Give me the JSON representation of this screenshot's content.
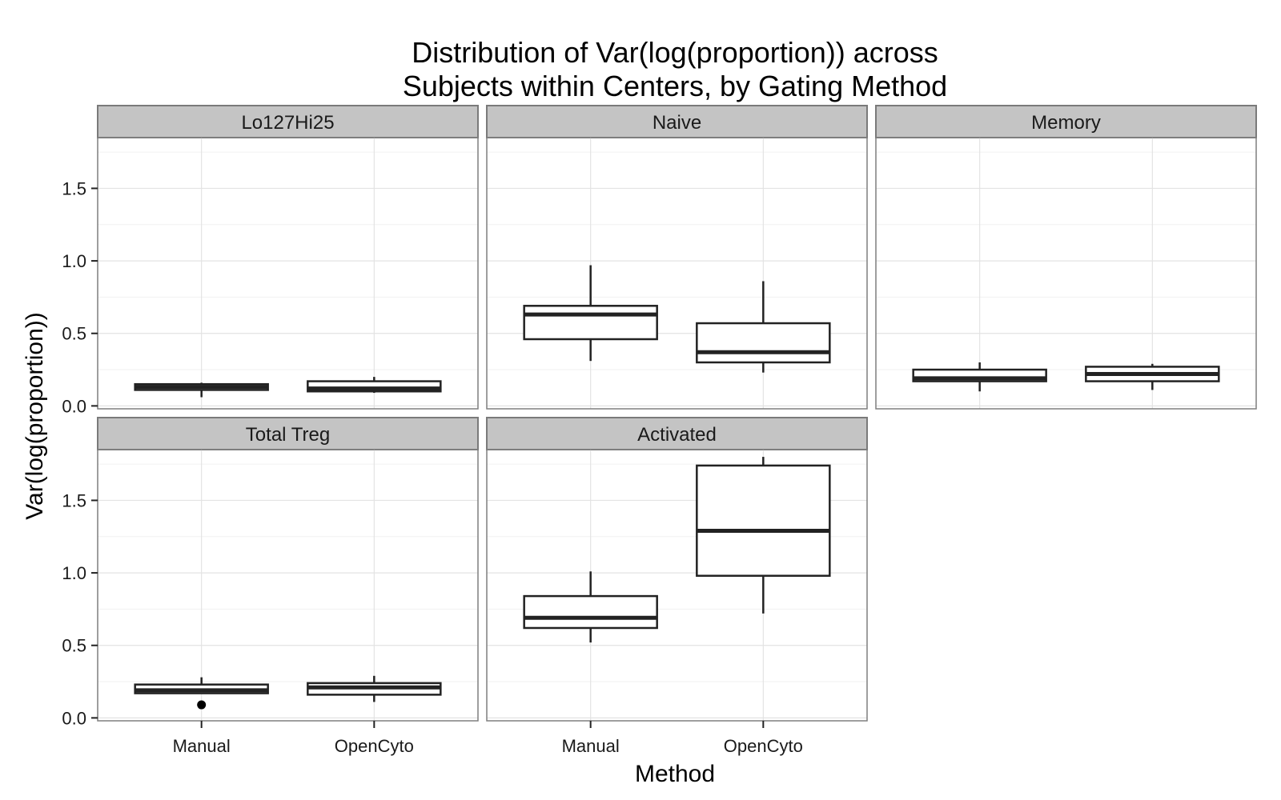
{
  "chart_data": {
    "type": "boxplot",
    "title_lines": [
      "Distribution of Var(log(proportion)) across",
      "Subjects within Centers, by Gating Method"
    ],
    "xlabel": "Method",
    "ylabel": "Var(log(proportion))",
    "categories": [
      "Manual",
      "OpenCyto"
    ],
    "y_ticks": [
      0.0,
      0.5,
      1.0,
      1.5
    ],
    "y_tick_labels": [
      "0.0",
      "0.5",
      "1.0",
      "1.5"
    ],
    "ylim": [
      -0.02,
      1.85
    ],
    "grid": true,
    "facets": [
      {
        "name": "Lo127Hi25",
        "boxes": [
          {
            "category": "Manual",
            "whisker_low": 0.06,
            "q1": 0.11,
            "median": 0.13,
            "q3": 0.15,
            "whisker_high": 0.16,
            "outliers": []
          },
          {
            "category": "OpenCyto",
            "whisker_low": 0.09,
            "q1": 0.1,
            "median": 0.12,
            "q3": 0.17,
            "whisker_high": 0.2,
            "outliers": []
          }
        ]
      },
      {
        "name": "Naive",
        "boxes": [
          {
            "category": "Manual",
            "whisker_low": 0.31,
            "q1": 0.46,
            "median": 0.63,
            "q3": 0.69,
            "whisker_high": 0.97,
            "outliers": []
          },
          {
            "category": "OpenCyto",
            "whisker_low": 0.23,
            "q1": 0.3,
            "median": 0.37,
            "q3": 0.57,
            "whisker_high": 0.86,
            "outliers": []
          }
        ]
      },
      {
        "name": "Memory",
        "boxes": [
          {
            "category": "Manual",
            "whisker_low": 0.1,
            "q1": 0.17,
            "median": 0.19,
            "q3": 0.25,
            "whisker_high": 0.3,
            "outliers": []
          },
          {
            "category": "OpenCyto",
            "whisker_low": 0.11,
            "q1": 0.17,
            "median": 0.22,
            "q3": 0.27,
            "whisker_high": 0.29,
            "outliers": []
          }
        ]
      },
      {
        "name": "Total Treg",
        "boxes": [
          {
            "category": "Manual",
            "whisker_low": 0.17,
            "q1": 0.17,
            "median": 0.19,
            "q3": 0.23,
            "whisker_high": 0.28,
            "outliers": [
              0.09
            ]
          },
          {
            "category": "OpenCyto",
            "whisker_low": 0.11,
            "q1": 0.16,
            "median": 0.21,
            "q3": 0.24,
            "whisker_high": 0.29,
            "outliers": []
          }
        ]
      },
      {
        "name": "Activated",
        "boxes": [
          {
            "category": "Manual",
            "whisker_low": 0.52,
            "q1": 0.62,
            "median": 0.69,
            "q3": 0.84,
            "whisker_high": 1.01,
            "outliers": []
          },
          {
            "category": "OpenCyto",
            "whisker_low": 0.72,
            "q1": 0.98,
            "median": 1.29,
            "q3": 1.74,
            "whisker_high": 1.8,
            "outliers": []
          }
        ]
      }
    ],
    "colors": {
      "strip_bg": "#c4c4c4",
      "strip_border": "#7a7a7a",
      "panel_border": "#7f7f7f",
      "grid_major": "#e3e3e3",
      "grid_minor": "#f1f1f1",
      "box": "#222222"
    }
  }
}
